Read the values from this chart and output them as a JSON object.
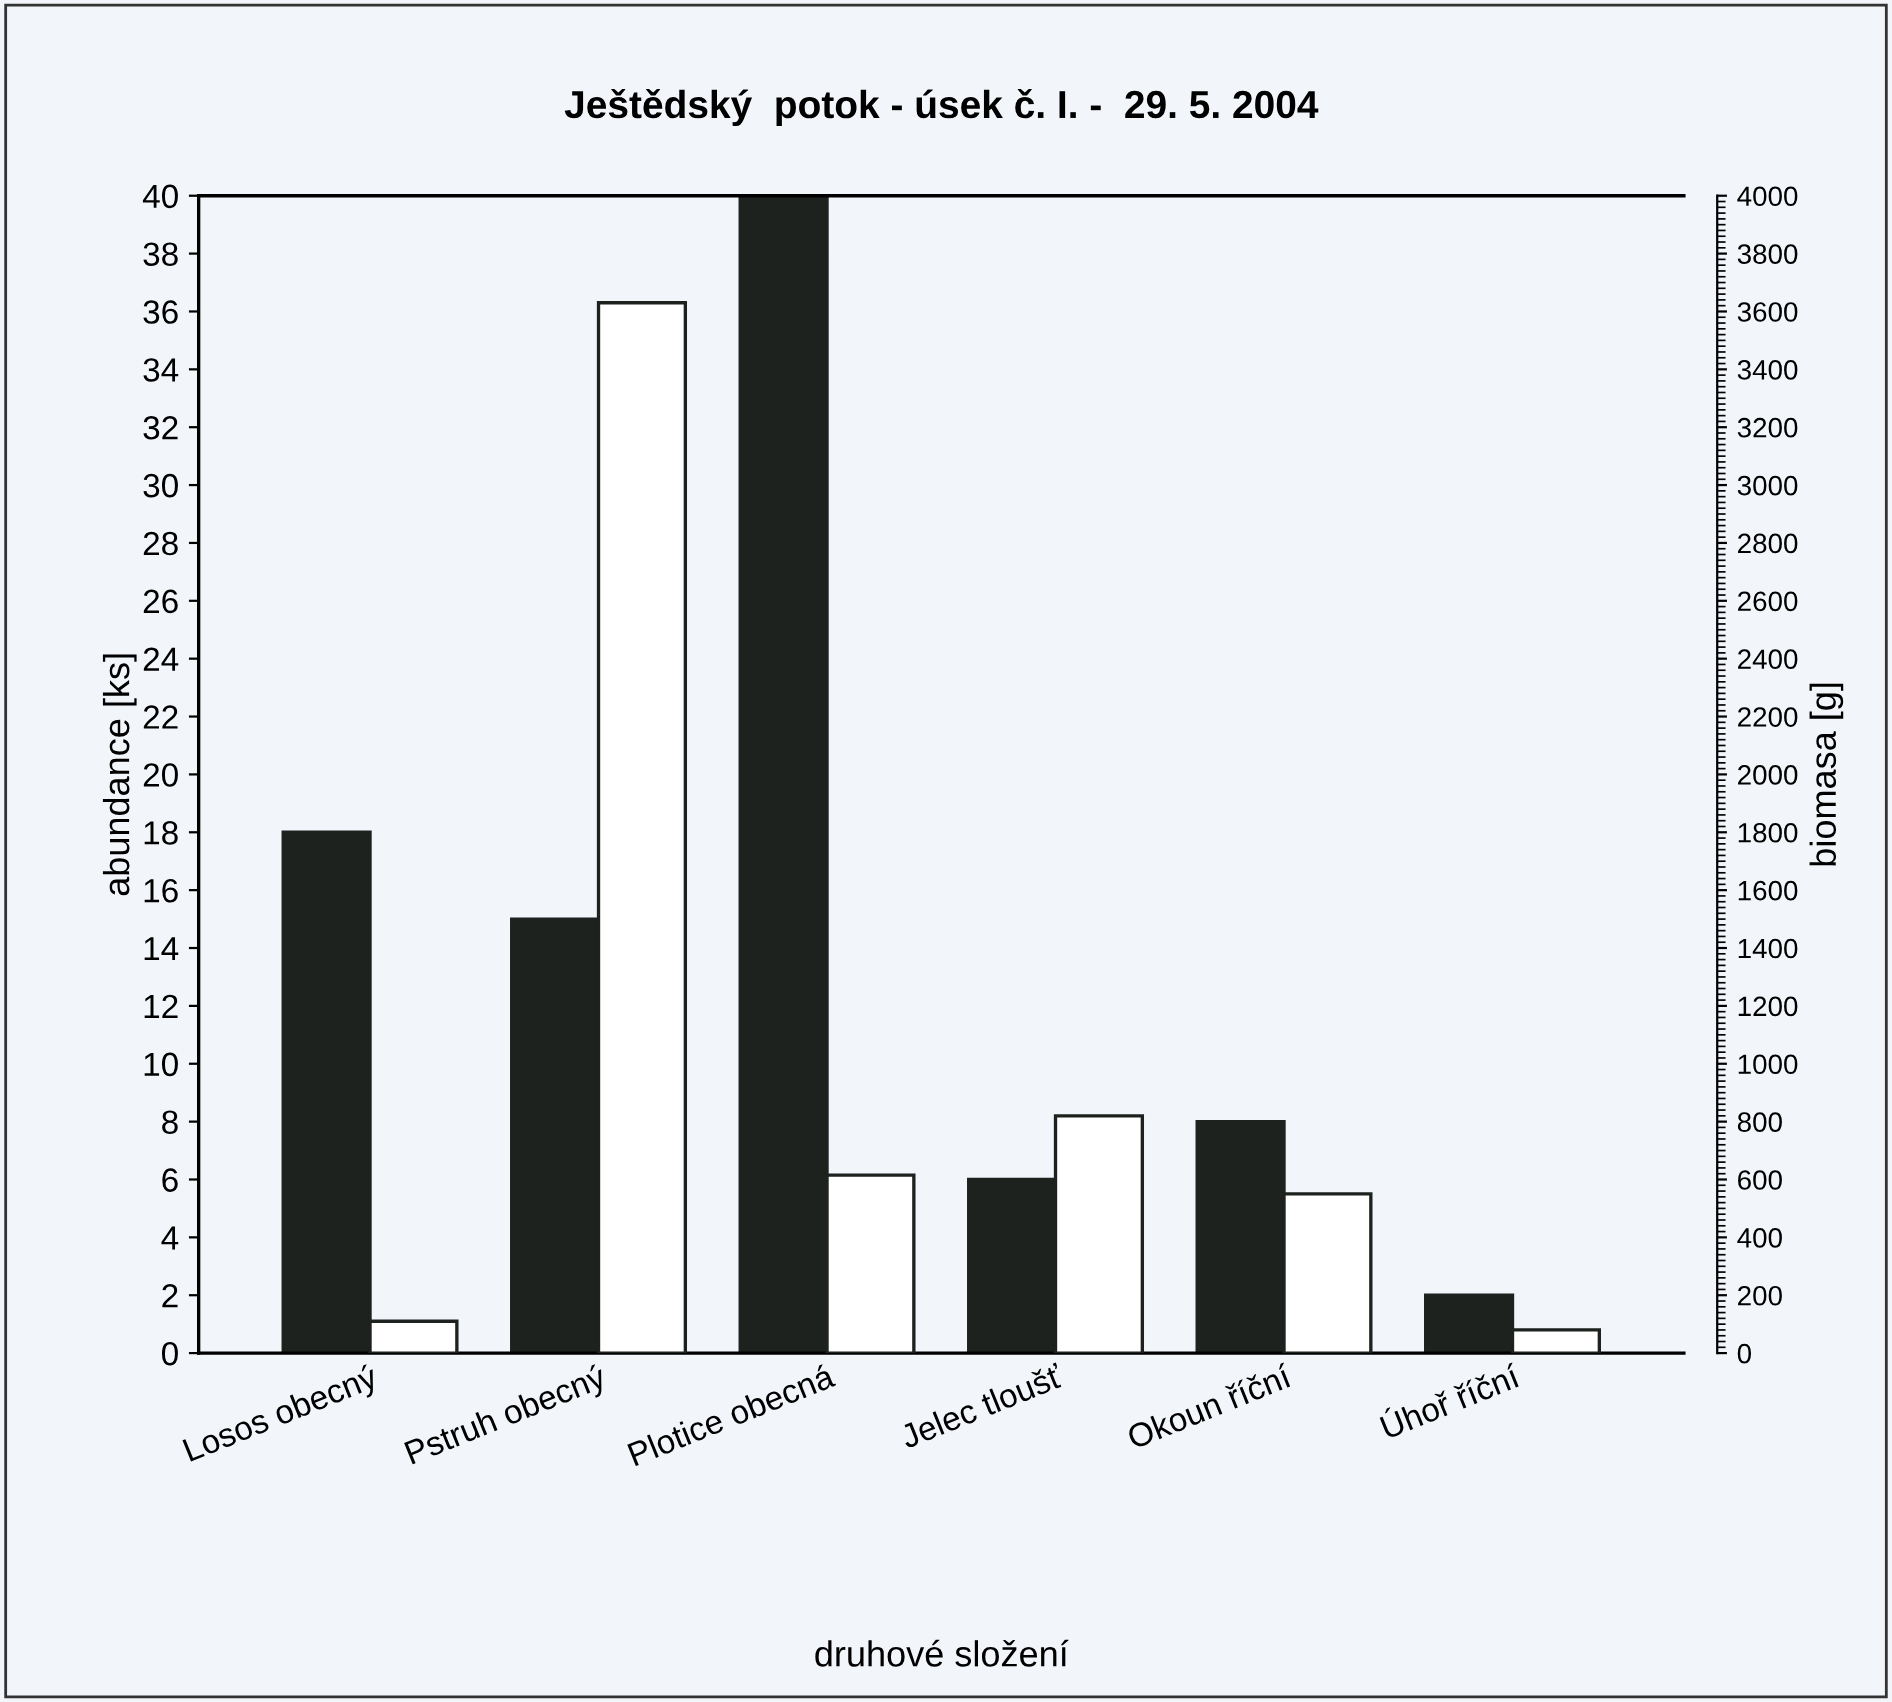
{
  "chart_data": {
    "type": "bar",
    "title": "Ještědský  potok - úsek č. I. -  29. 5. 2004",
    "xlabel": "druhové složení",
    "ylabel": "abundance [ks]",
    "y2label": "biomasa [g]",
    "categories": [
      "Losos obecný",
      "Pstruh obecný",
      "Plotice obecná",
      "Jelec tloušť",
      "Okoun říční",
      "Úhoř říční"
    ],
    "series": [
      {
        "color": "#1e221e",
        "values": [
          18,
          15,
          40,
          6,
          8,
          2
        ]
      },
      {
        "color": "#ffffff",
        "axis": "y2",
        "values": [
          110,
          3630,
          615,
          820,
          550,
          80
        ]
      }
    ],
    "ylim": [
      0,
      40
    ],
    "yticks": [
      0,
      2,
      4,
      6,
      8,
      10,
      12,
      14,
      16,
      18,
      20,
      22,
      24,
      26,
      28,
      30,
      32,
      34,
      36,
      38,
      40
    ],
    "y2lim": [
      0,
      4000
    ],
    "y2ticks": [
      0,
      200,
      400,
      600,
      800,
      1000,
      1200,
      1400,
      1600,
      1800,
      2000,
      2200,
      2400,
      2600,
      2800,
      3000,
      3200,
      3400,
      3600,
      3800,
      4000
    ],
    "grid": false,
    "legend": false
  }
}
